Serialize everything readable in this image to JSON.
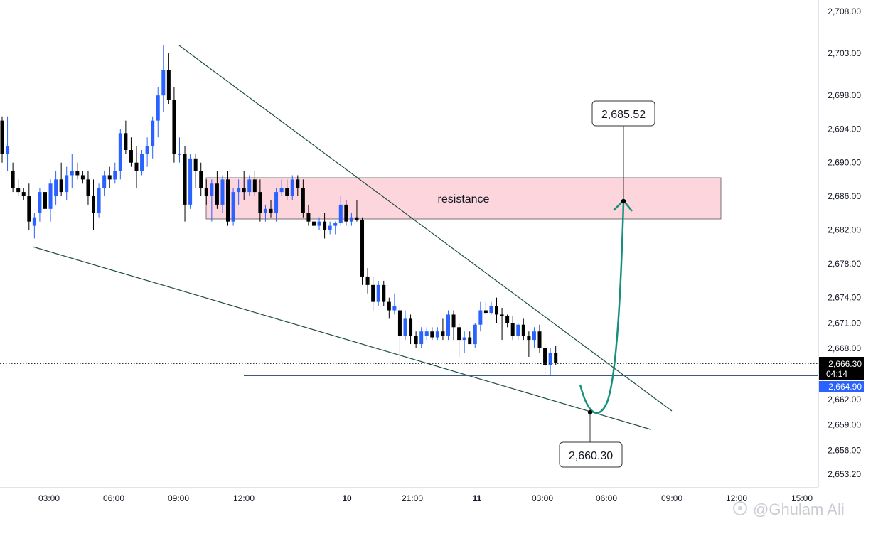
{
  "chart_data": {
    "type": "candlestick",
    "y_ticks": [
      "2,708.00",
      "2,703.00",
      "2,698.00",
      "2,694.00",
      "2,690.00",
      "2,686.00",
      "2,682.00",
      "2,678.00",
      "2,674.00",
      "2,671.00",
      "2,668.00",
      "2,662.00",
      "2,659.00",
      "2,656.00",
      "2,653.20"
    ],
    "x_ticks": [
      {
        "label": "03:00",
        "bold": false
      },
      {
        "label": "06:00",
        "bold": false
      },
      {
        "label": "09:00",
        "bold": false
      },
      {
        "label": "12:00",
        "bold": false
      },
      {
        "label": "10",
        "bold": true
      },
      {
        "label": "21:00",
        "bold": false
      },
      {
        "label": "11",
        "bold": true
      },
      {
        "label": "03:00",
        "bold": false
      },
      {
        "label": "06:00",
        "bold": false
      },
      {
        "label": "09:00",
        "bold": false
      },
      {
        "label": "12:00",
        "bold": false
      },
      {
        "label": "15:00",
        "bold": false
      }
    ],
    "ylim": [
      2652.0,
      2709.0
    ],
    "candles": [
      [
        2695,
        2695.5,
        2690,
        2691
      ],
      [
        2691,
        2695.5,
        2689,
        2692
      ],
      [
        2689,
        2690,
        2686.5,
        2687
      ],
      [
        2687,
        2688,
        2686,
        2686.5
      ],
      [
        2686.5,
        2687,
        2685.5,
        2686
      ],
      [
        2686,
        2687.5,
        2682,
        2683
      ],
      [
        2682.5,
        2684,
        2681,
        2683.5
      ],
      [
        2684,
        2687,
        2683,
        2686.5
      ],
      [
        2686.5,
        2687.5,
        2684,
        2684.5
      ],
      [
        2684.5,
        2688,
        2683,
        2687.5
      ],
      [
        2686,
        2689,
        2685,
        2688
      ],
      [
        2688,
        2690,
        2686,
        2686.5
      ],
      [
        2686.5,
        2689.5,
        2685.5,
        2688.5
      ],
      [
        2688.5,
        2691,
        2687,
        2689
      ],
      [
        2689,
        2690,
        2688,
        2688.5
      ],
      [
        2688.5,
        2689,
        2687.5,
        2688
      ],
      [
        2688,
        2689,
        2685,
        2686
      ],
      [
        2686,
        2688,
        2682,
        2684
      ],
      [
        2684,
        2687.5,
        2683.5,
        2687
      ],
      [
        2687,
        2689,
        2686,
        2688.5
      ],
      [
        2688.5,
        2689.5,
        2687,
        2688
      ],
      [
        2688,
        2690,
        2687.5,
        2689
      ],
      [
        2689,
        2694,
        2688,
        2693.5
      ],
      [
        2693.5,
        2695,
        2691,
        2691.5
      ],
      [
        2691.5,
        2693,
        2689.5,
        2690
      ],
      [
        2690,
        2692,
        2687,
        2689
      ],
      [
        2689,
        2691.5,
        2688.5,
        2691
      ],
      [
        2691,
        2693,
        2689.5,
        2692
      ],
      [
        2692,
        2695.5,
        2690.5,
        2695
      ],
      [
        2695,
        2699,
        2693,
        2698
      ],
      [
        2698,
        2704,
        2696,
        2701
      ],
      [
        2701,
        2703,
        2697,
        2697.5
      ],
      [
        2697.5,
        2699,
        2690,
        2691
      ],
      [
        2691,
        2693,
        2690,
        2691
      ],
      [
        2691,
        2692,
        2683,
        2685
      ],
      [
        2685,
        2691,
        2684.5,
        2690.5
      ],
      [
        2690.5,
        2691,
        2687,
        2689
      ],
      [
        2689,
        2690,
        2686,
        2687
      ],
      [
        2687,
        2688,
        2685,
        2686
      ],
      [
        2686,
        2688,
        2683,
        2687.5
      ],
      [
        2687.5,
        2689,
        2684.5,
        2685
      ],
      [
        2685,
        2688.5,
        2684,
        2688
      ],
      [
        2688,
        2689,
        2682.5,
        2683
      ],
      [
        2683,
        2687,
        2682.5,
        2686.5
      ],
      [
        2686.5,
        2688,
        2685,
        2687
      ],
      [
        2687,
        2689,
        2685.5,
        2686.5
      ],
      [
        2686.5,
        2688.5,
        2686,
        2688
      ],
      [
        2688,
        2689,
        2686,
        2686.5
      ],
      [
        2686.5,
        2688,
        2683,
        2684
      ],
      [
        2684,
        2685,
        2683,
        2684.5
      ],
      [
        2684.5,
        2685.5,
        2683.5,
        2684
      ],
      [
        2684,
        2687,
        2683,
        2686.5
      ],
      [
        2686.5,
        2688,
        2686,
        2687
      ],
      [
        2687,
        2688,
        2685.5,
        2686
      ],
      [
        2686,
        2688.5,
        2685.5,
        2688
      ],
      [
        2688,
        2688.5,
        2686,
        2687
      ],
      [
        2687,
        2688,
        2683.5,
        2684
      ],
      [
        2684,
        2685,
        2682.5,
        2683
      ],
      [
        2683,
        2684,
        2681.5,
        2682.5
      ],
      [
        2682.5,
        2683.5,
        2682,
        2683
      ],
      [
        2683,
        2684,
        2681,
        2682
      ],
      [
        2682,
        2683,
        2681.5,
        2682.5
      ],
      [
        2682.5,
        2683,
        2681.5,
        2682.8
      ],
      [
        2682.8,
        2686,
        2682.5,
        2685
      ],
      [
        2685,
        2685.5,
        2682.5,
        2683
      ],
      [
        2683,
        2684,
        2682.5,
        2683.5
      ],
      [
        2683.5,
        2685.5,
        2683,
        2683.2
      ],
      [
        2683.2,
        2683.5,
        2675.5,
        2676.5
      ],
      [
        2676.5,
        2677.5,
        2674.5,
        2675.5
      ],
      [
        2675.5,
        2676.5,
        2672.5,
        2673.5
      ],
      [
        2673.5,
        2676,
        2673,
        2675.5
      ],
      [
        2675.5,
        2676,
        2673,
        2673.5
      ],
      [
        2673.5,
        2674,
        2671.5,
        2672.5
      ],
      [
        2672.5,
        2674.5,
        2672,
        2673
      ],
      [
        2672.5,
        2673,
        2666.5,
        2669.5
      ],
      [
        2669.5,
        2672.5,
        2669,
        2671.5
      ],
      [
        2671.5,
        2672,
        2668.5,
        2669.5
      ],
      [
        2669.5,
        2670,
        2668,
        2668.5
      ],
      [
        2668.5,
        2670.5,
        2668,
        2670
      ],
      [
        2669.5,
        2670.5,
        2669,
        2670
      ],
      [
        2670,
        2670.5,
        2669,
        2669.3
      ],
      [
        2669.3,
        2670.5,
        2669,
        2670
      ],
      [
        2670,
        2671.5,
        2669,
        2669.5
      ],
      [
        2669.5,
        2672.5,
        2669,
        2672
      ],
      [
        2672,
        2672.5,
        2669,
        2670.5
      ],
      [
        2670.5,
        2671,
        2667,
        2669
      ],
      [
        2669,
        2670,
        2667.5,
        2669.3
      ],
      [
        2669.3,
        2670,
        2668.5,
        2668.5
      ],
      [
        2668.5,
        2671,
        2668,
        2670.8
      ],
      [
        2670.8,
        2673.5,
        2670,
        2672.5
      ],
      [
        2672.5,
        2673.5,
        2672,
        2672.2
      ],
      [
        2672.2,
        2673.5,
        2672,
        2673
      ],
      [
        2673,
        2674,
        2671,
        2672
      ],
      [
        2672,
        2672.8,
        2669,
        2671.8
      ],
      [
        2671.8,
        2672,
        2670.5,
        2671
      ],
      [
        2671,
        2671.8,
        2669,
        2669.5
      ],
      [
        2669.5,
        2671,
        2669,
        2670.8
      ],
      [
        2670.8,
        2671.5,
        2669,
        2669.5
      ],
      [
        2669.5,
        2670,
        2667,
        2669
      ],
      [
        2669,
        2670.5,
        2668,
        2670
      ],
      [
        2670,
        2670.8,
        2667.5,
        2668
      ],
      [
        2668,
        2668.5,
        2665,
        2666
      ],
      [
        2666,
        2668,
        2664.8,
        2667.5
      ],
      [
        2667.5,
        2668.3,
        2666,
        2666.3
      ]
    ],
    "resistance_label": "resistance",
    "target_label": "2,685.52",
    "low_label": "2,660.30",
    "current_price": "2,666.30",
    "countdown": "04:14",
    "line_price": "2,664.90",
    "watermark": "@Ghulam Ali"
  },
  "colors": {
    "bull": "#2962ff",
    "bear": "#000000",
    "trend": "#1e4d45",
    "arrow": "#14907d",
    "zone_fill": "#fcd6dc",
    "zone_border": "#555555",
    "hline": "#3a5a85",
    "price_tag": "#000000",
    "line_tag": "#2962ff"
  }
}
